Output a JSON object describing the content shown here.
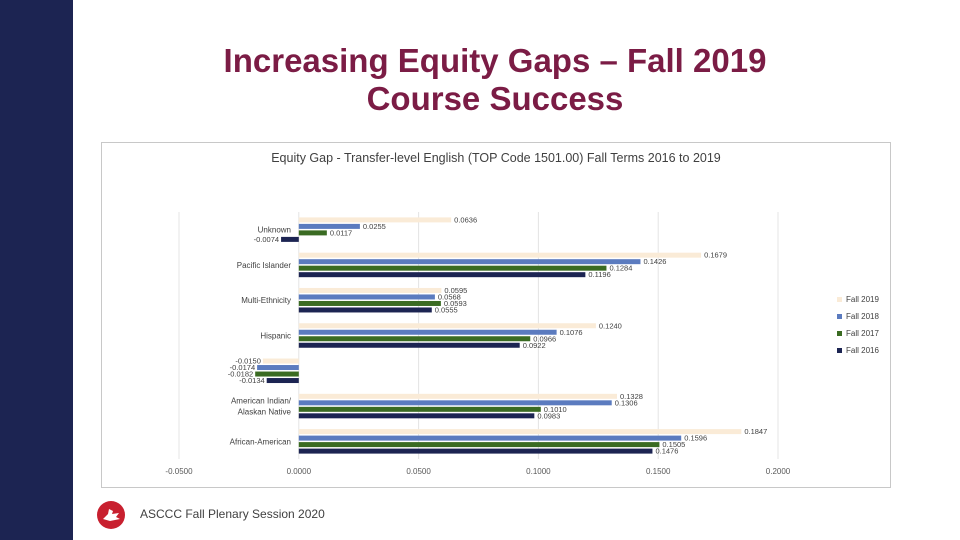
{
  "slide": {
    "title_line1": "Increasing Equity Gaps – Fall 2019",
    "title_line2": "Course Success",
    "footer": "ASCCC Fall Plenary Session 2020"
  },
  "colors": {
    "sidebar": "#1c2452",
    "title": "#7b1c45",
    "fall2019": "#faebd7",
    "fall2018": "#5b7bbf",
    "fall2017": "#3a6b22",
    "fall2016": "#1c2452"
  },
  "icons": {
    "logo": "cardinal-icon"
  },
  "chart_data": {
    "type": "bar",
    "orientation": "horizontal",
    "title": "Equity Gap - Transfer-level English (TOP Code 1501.00) Fall Terms 2016 to 2019",
    "categories": [
      "Unknown",
      "Pacific Islander",
      "Multi-Ethnicity",
      "Hispanic",
      "",
      "American Indian/Alaskan Native",
      "African-American"
    ],
    "series": [
      {
        "name": "Fall 2019",
        "values": [
          0.0636,
          0.1679,
          0.0595,
          0.124,
          -0.015,
          0.1328,
          0.1847
        ],
        "labels": [
          "0.0636",
          "0.1679",
          "0.0595",
          "0.1240",
          "-0.0150",
          "0.1328",
          "0.1847"
        ]
      },
      {
        "name": "Fall 2018",
        "values": [
          0.0255,
          0.1426,
          0.0568,
          0.1076,
          -0.0174,
          0.1306,
          0.1596
        ],
        "labels": [
          "0.0255",
          "0.1426",
          "0.0568",
          "0.1076",
          "-0.0174",
          "0.1306",
          "0.1596"
        ]
      },
      {
        "name": "Fall 2017",
        "values": [
          0.0117,
          0.1284,
          0.0593,
          0.0966,
          -0.0182,
          0.101,
          0.1505
        ],
        "labels": [
          "0.0117",
          "0.1284",
          "0.0593",
          "0.0966",
          "-0.0182",
          "0.1010",
          "0.1505"
        ]
      },
      {
        "name": "Fall 2016",
        "values": [
          -0.0074,
          0.1196,
          0.0555,
          0.0922,
          -0.0134,
          0.0983,
          0.1476
        ],
        "labels": [
          "-0.0074",
          "0.1196",
          "0.0555",
          "0.0922",
          "-0.0134",
          "0.0983",
          "0.1476"
        ]
      }
    ],
    "xlim": [
      -0.05,
      0.2
    ],
    "xticks": [
      "-0.0500",
      "0.0000",
      "0.0500",
      "0.1000",
      "0.1500",
      "0.2000"
    ],
    "legend_position": "right",
    "grid": true
  }
}
